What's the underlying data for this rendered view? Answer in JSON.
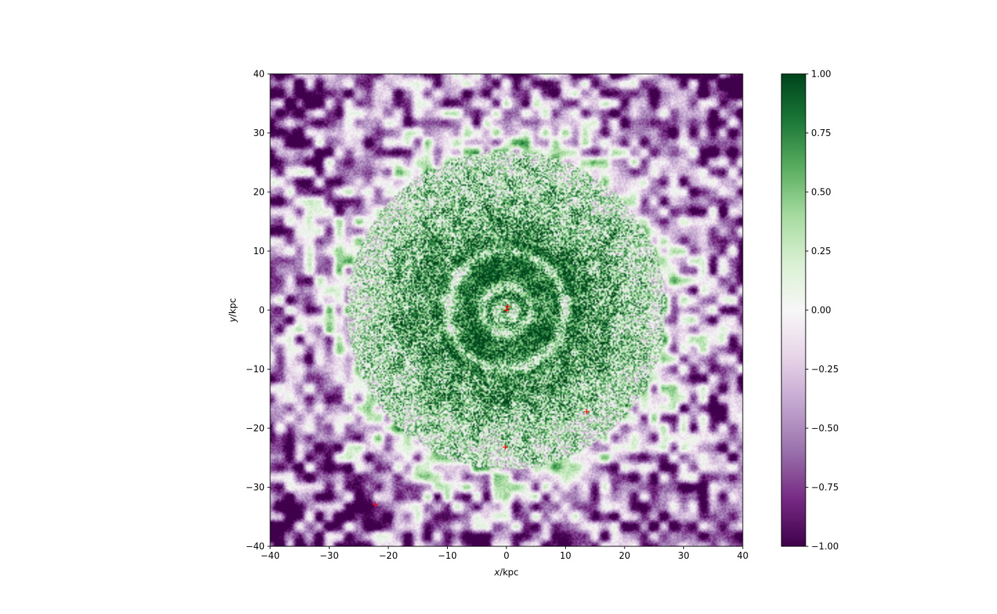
{
  "chart_data": {
    "type": "heatmap",
    "title": "",
    "xlabel": {
      "var": "x",
      "unit": "/kpc"
    },
    "ylabel": {
      "var": "y",
      "unit": "/kpc"
    },
    "xlim": [
      -40,
      40
    ],
    "ylim": [
      -40,
      40
    ],
    "xticks": [
      -40,
      -30,
      -20,
      -10,
      0,
      10,
      20,
      30,
      40
    ],
    "yticks": [
      -40,
      -30,
      -20,
      -10,
      0,
      10,
      20,
      30,
      40
    ],
    "grid": false,
    "colormap": "PRGn",
    "colormap_stops": [
      "#40004b",
      "#762a83",
      "#9970ab",
      "#c2a5cf",
      "#e7d4e8",
      "#f7f7f7",
      "#d9f0d3",
      "#a6dba0",
      "#5aae61",
      "#1b7837",
      "#00441b"
    ],
    "colorbar": {
      "range": [
        -1.0,
        1.0
      ],
      "ticks": [
        -1.0,
        -0.75,
        -0.5,
        -0.25,
        0.0,
        0.25,
        0.5,
        0.75,
        1.0
      ],
      "tick_labels": [
        "−1.00",
        "−0.75",
        "−0.50",
        "−0.25",
        "0.00",
        "0.25",
        "0.50",
        "0.75",
        "1.00"
      ]
    },
    "field_description": {
      "core_green_radius_kpc": 12,
      "inner_ring_radii_kpc": [
        1.5,
        4,
        10
      ],
      "green_halo_radius_kpc": 27,
      "outer_purple_beyond_kpc": 32
    },
    "markers": {
      "color": "#ff0000",
      "symbol": "+",
      "points": [
        {
          "x": 0.2,
          "y": 0.6
        },
        {
          "x": 0.0,
          "y": 0.0
        },
        {
          "x": 13.6,
          "y": -17.2
        },
        {
          "x": -0.2,
          "y": -23.2
        },
        {
          "x": -22.2,
          "y": -32.9
        }
      ]
    }
  }
}
